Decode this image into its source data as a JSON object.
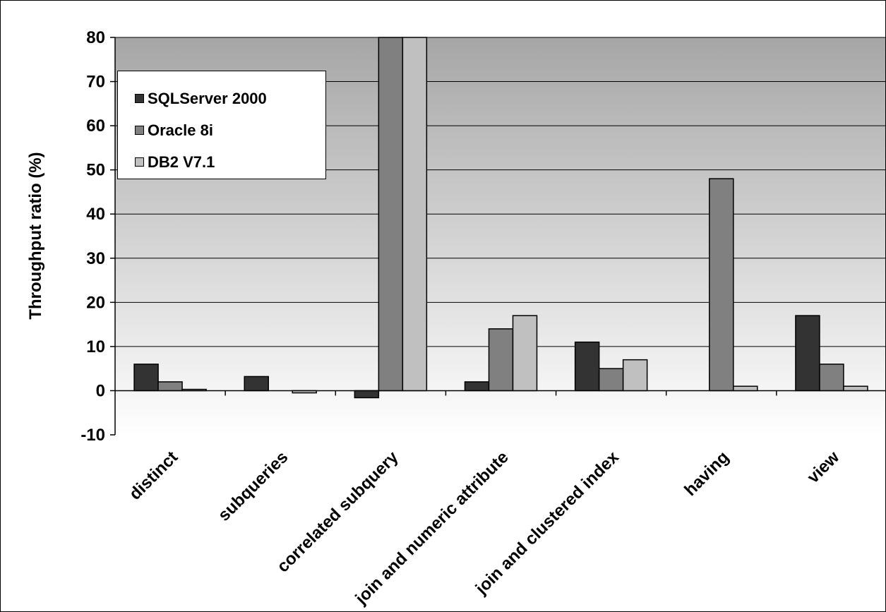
{
  "chart_data": {
    "type": "bar",
    "title": "",
    "xlabel": "",
    "ylabel": "Throughput ratio (%)",
    "ylim": [
      -10,
      80
    ],
    "yticks": [
      -10,
      0,
      10,
      20,
      30,
      40,
      50,
      60,
      70,
      80
    ],
    "grid": true,
    "legend_position": "top-left",
    "categories": [
      "distinct",
      "subqueries",
      "correlated subquery",
      "join and numeric attribute",
      "join and clustered index",
      "having",
      "view"
    ],
    "series": [
      {
        "name": "SQLServer 2000",
        "color": "#333333",
        "values": [
          6,
          3.2,
          -1.6,
          2,
          11,
          0,
          17
        ]
      },
      {
        "name": "Oracle 8i",
        "color": "#808080",
        "values": [
          2,
          0,
          80,
          14,
          5,
          48,
          6
        ]
      },
      {
        "name": "DB2 V7.1",
        "color": "#c0c0c0",
        "values": [
          0.3,
          -0.5,
          80,
          17,
          7,
          1,
          1
        ]
      }
    ]
  }
}
